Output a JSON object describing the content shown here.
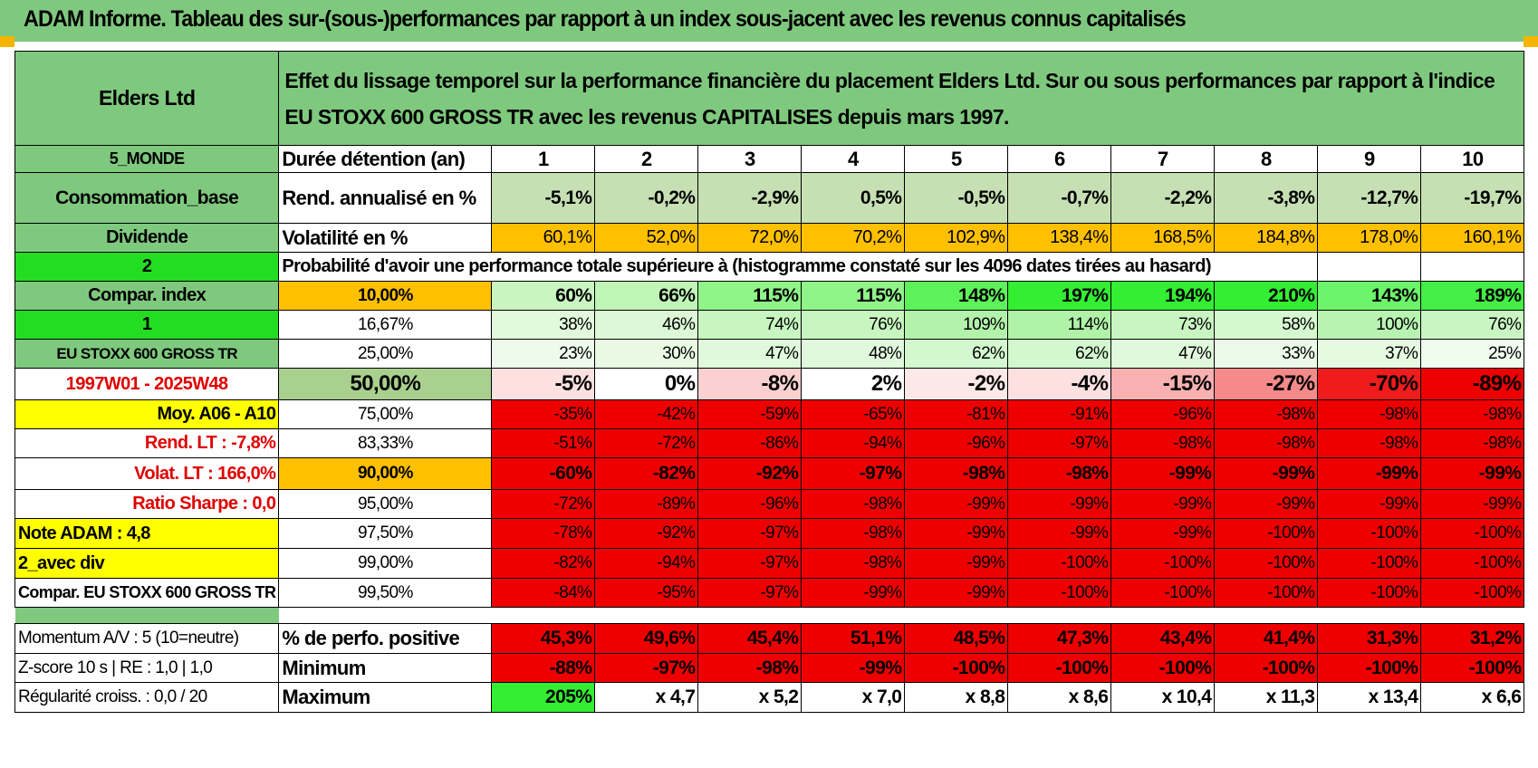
{
  "report_title": "ADAM Informe. Tableau des sur-(sous-)performances par rapport à un index sous-jacent avec les revenus connus capitalisés",
  "left": {
    "fund_name": "Elders Ltd",
    "region": "5_MONDE",
    "sector": "Consommation_base",
    "dividend_label": "Dividende",
    "selector_a": "2",
    "compar_index": "Compar. index",
    "selector_b": "1",
    "index_name": "EU STOXX 600 GROSS TR",
    "period": "1997W01 - 2025W48",
    "moy": "Moy. A06 - A10",
    "rend_lt": "Rend. LT :    -7,8%",
    "volat_lt": "Volat. LT :    166,0%",
    "ratio_sharpe": "Ratio Sharpe :     0,0",
    "note_adam": "Note ADAM : 4,8",
    "avec_div": "2_avec div",
    "compar_full": "Compar. EU STOXX 600 GROSS TR"
  },
  "description": "Effet du lissage temporel sur la performance financière du placement Elders Ltd. Sur ou sous performances par rapport à l'indice EU STOXX 600 GROSS TR avec les revenus CAPITALISES depuis mars 1997.",
  "header": {
    "label": "Durée détention (an)",
    "years": [
      "1",
      "2",
      "3",
      "4",
      "5",
      "6",
      "7",
      "8",
      "9",
      "10"
    ]
  },
  "rend": {
    "label": "Rend. annualisé en %",
    "values": [
      "-5,1%",
      "-0,2%",
      "-2,9%",
      "0,5%",
      "-0,5%",
      "-0,7%",
      "-2,2%",
      "-3,8%",
      "-12,7%",
      "-19,7%"
    ]
  },
  "vol": {
    "label": "Volatilité en %",
    "values": [
      "60,1%",
      "52,0%",
      "72,0%",
      "70,2%",
      "102,9%",
      "138,4%",
      "168,5%",
      "184,8%",
      "178,0%",
      "160,1%"
    ]
  },
  "prob_caption": "Probabilité d'avoir une performance totale supérieure à (histogramme constaté sur les 4096 dates tirées au hasard)",
  "quantiles": [
    {
      "level": "10,00%",
      "values": [
        "60%",
        "66%",
        "115%",
        "115%",
        "148%",
        "197%",
        "194%",
        "210%",
        "143%",
        "189%"
      ]
    },
    {
      "level": "16,67%",
      "values": [
        "38%",
        "46%",
        "74%",
        "76%",
        "109%",
        "114%",
        "73%",
        "58%",
        "100%",
        "76%"
      ]
    },
    {
      "level": "25,00%",
      "values": [
        "23%",
        "30%",
        "47%",
        "48%",
        "62%",
        "62%",
        "47%",
        "33%",
        "37%",
        "25%"
      ]
    },
    {
      "level": "50,00%",
      "values": [
        "-5%",
        "0%",
        "-8%",
        "2%",
        "-2%",
        "-4%",
        "-15%",
        "-27%",
        "-70%",
        "-89%"
      ]
    },
    {
      "level": "75,00%",
      "values": [
        "-35%",
        "-42%",
        "-59%",
        "-65%",
        "-81%",
        "-91%",
        "-96%",
        "-98%",
        "-98%",
        "-98%"
      ]
    },
    {
      "level": "83,33%",
      "values": [
        "-51%",
        "-72%",
        "-86%",
        "-94%",
        "-96%",
        "-97%",
        "-98%",
        "-98%",
        "-98%",
        "-98%"
      ]
    },
    {
      "level": "90,00%",
      "values": [
        "-60%",
        "-82%",
        "-92%",
        "-97%",
        "-98%",
        "-98%",
        "-99%",
        "-99%",
        "-99%",
        "-99%"
      ]
    },
    {
      "level": "95,00%",
      "values": [
        "-72%",
        "-89%",
        "-96%",
        "-98%",
        "-99%",
        "-99%",
        "-99%",
        "-99%",
        "-99%",
        "-99%"
      ]
    },
    {
      "level": "97,50%",
      "values": [
        "-78%",
        "-92%",
        "-97%",
        "-98%",
        "-99%",
        "-99%",
        "-99%",
        "-100%",
        "-100%",
        "-100%"
      ]
    },
    {
      "level": "99,00%",
      "values": [
        "-82%",
        "-94%",
        "-97%",
        "-98%",
        "-99%",
        "-100%",
        "-100%",
        "-100%",
        "-100%",
        "-100%"
      ]
    },
    {
      "level": "99,50%",
      "values": [
        "-84%",
        "-95%",
        "-97%",
        "-99%",
        "-99%",
        "-100%",
        "-100%",
        "-100%",
        "-100%",
        "-100%"
      ]
    }
  ],
  "bottom": [
    {
      "left": "Momentum A/V : 5 (10=neutre)",
      "label": "% de perfo. positive",
      "values": [
        "45,3%",
        "49,6%",
        "45,4%",
        "51,1%",
        "48,5%",
        "47,3%",
        "43,4%",
        "41,4%",
        "31,3%",
        "31,2%"
      ]
    },
    {
      "left": "Z-score 10 s | RE : 1,0  | 1,0",
      "label": "Minimum",
      "values": [
        "-88%",
        "-97%",
        "-98%",
        "-99%",
        "-100%",
        "-100%",
        "-100%",
        "-100%",
        "-100%",
        "-100%"
      ]
    },
    {
      "left": "Régularité croiss. : 0,0 / 20",
      "label": "Maximum",
      "values": [
        "205%",
        "x 4,7",
        "x 5,2",
        "x 7,0",
        "x 8,8",
        "x 8,6",
        "x 10,4",
        "x 11,3",
        "x 13,4",
        "x 6,6"
      ]
    }
  ]
}
